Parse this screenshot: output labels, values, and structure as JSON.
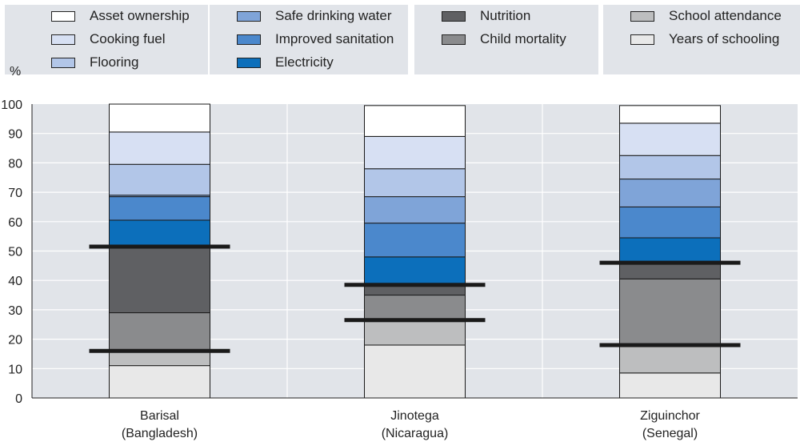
{
  "chart_data": {
    "type": "bar",
    "stacked": true,
    "ylabel": "%",
    "ylim": [
      0,
      100
    ],
    "yticks": [
      0,
      10,
      20,
      30,
      40,
      50,
      60,
      70,
      80,
      90,
      100
    ],
    "grid": true,
    "legend_position": "top",
    "categories": [
      {
        "line1": "Barisal",
        "line2": "(Bangladesh)"
      },
      {
        "line1": "Jinotega",
        "line2": "(Nicaragua)"
      },
      {
        "line1": "Ziguinchor",
        "line2": "(Senegal)"
      }
    ],
    "series": [
      {
        "name": "Years of schooling",
        "color": "#e8e8e8",
        "values": [
          11,
          18,
          8.5
        ]
      },
      {
        "name": "School attendance",
        "color": "#bdbebf",
        "values": [
          5,
          8,
          9
        ]
      },
      {
        "name": "Child mortality",
        "color": "#8a8b8d",
        "values": [
          13,
          9,
          23
        ]
      },
      {
        "name": "Nutrition",
        "color": "#5f6063",
        "values": [
          22,
          3,
          5
        ]
      },
      {
        "name": "Electricity",
        "color": "#0c6fbb",
        "values": [
          9.5,
          10,
          9
        ]
      },
      {
        "name": "Improved sanitation",
        "color": "#4b88cc",
        "values": [
          8,
          11.5,
          10.5
        ]
      },
      {
        "name": "Safe drinking water",
        "color": "#7fa4d8",
        "values": [
          0.5,
          9,
          9.5
        ]
      },
      {
        "name": "Flooring",
        "color": "#b2c6e8",
        "values": [
          10.5,
          9.5,
          8
        ]
      },
      {
        "name": "Cooking fuel",
        "color": "#d7e0f3",
        "values": [
          11,
          11,
          11
        ]
      },
      {
        "name": "Asset ownership",
        "color": "#ffffff",
        "values": [
          9.5,
          10.5,
          6
        ]
      }
    ],
    "thresholds": [
      {
        "category": "Barisal",
        "values": [
          16,
          51.5
        ]
      },
      {
        "category": "Jinotega",
        "values": [
          26.5,
          38.5
        ]
      },
      {
        "category": "Ziguinchor",
        "values": [
          18,
          46
        ]
      }
    ],
    "legend_groups": [
      [
        {
          "label": "Asset ownership",
          "color": "#ffffff"
        },
        {
          "label": "Cooking fuel",
          "color": "#d7e0f3"
        },
        {
          "label": "Flooring",
          "color": "#b2c6e8"
        }
      ],
      [
        {
          "label": "Safe drinking water",
          "color": "#7fa4d8"
        },
        {
          "label": "Improved sanitation",
          "color": "#4b88cc"
        },
        {
          "label": "Electricity",
          "color": "#0c6fbb"
        }
      ],
      [
        {
          "label": "Nutrition",
          "color": "#5f6063"
        },
        {
          "label": "Child mortality",
          "color": "#8a8b8d"
        }
      ],
      [
        {
          "label": "School attendance",
          "color": "#bdbebf"
        },
        {
          "label": "Years of schooling",
          "color": "#e8e8e8"
        }
      ]
    ],
    "colors": {
      "plot_background": "#e1e4e9",
      "grid": "#ffffff",
      "threshold_line": "#1a1a1a"
    }
  }
}
